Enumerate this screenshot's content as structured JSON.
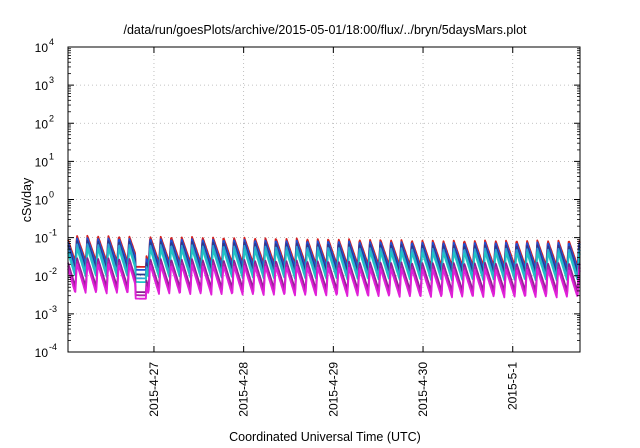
{
  "chart_data": {
    "type": "line",
    "title": "/data/run/goesPlots/archive/2015-05-01/18:00/flux/../bryn/5daysMars.plot",
    "xlabel": "Coordinated Universal Time (UTC)",
    "ylabel": "cSv/day",
    "yscale": "log",
    "ylim": [
      0.0001,
      10000
    ],
    "y_ticks": [
      {
        "value": 0.0001,
        "base": "10",
        "exp": "-4"
      },
      {
        "value": 0.001,
        "base": "10",
        "exp": "-3"
      },
      {
        "value": 0.01,
        "base": "10",
        "exp": "-2"
      },
      {
        "value": 0.1,
        "base": "10",
        "exp": "-1"
      },
      {
        "value": 1,
        "base": "10",
        "exp": "0"
      },
      {
        "value": 10,
        "base": "10",
        "exp": "1"
      },
      {
        "value": 100,
        "base": "10",
        "exp": "2"
      },
      {
        "value": 1000,
        "base": "10",
        "exp": "3"
      },
      {
        "value": 10000,
        "base": "10",
        "exp": "4"
      }
    ],
    "xlim": [
      "2015-04-26 01:00",
      "2015-05-01 18:00"
    ],
    "x_ticks": [
      {
        "value": "2015-04-27 00:00",
        "label": "2015-4-27"
      },
      {
        "value": "2015-04-28 00:00",
        "label": "2015-4-28"
      },
      {
        "value": "2015-04-29 00:00",
        "label": "2015-4-29"
      },
      {
        "value": "2015-04-30 00:00",
        "label": "2015-4-30"
      },
      {
        "value": "2015-05-01 00:00",
        "label": "2015-5-1"
      }
    ],
    "grid": true,
    "legend": "none",
    "pattern": {
      "cycle_hours": 2.8,
      "decay_fraction": 0.85,
      "dropout": [
        "2015-04-26 19:00",
        "2015-04-26 22:00"
      ]
    },
    "series": [
      {
        "color": "#d42020",
        "peak_early": 0.115,
        "trough_early": 0.024,
        "peak_late": 0.085,
        "trough_late": 0.018
      },
      {
        "color": "#1f4fd6",
        "peak_early": 0.1,
        "trough_early": 0.02,
        "peak_late": 0.075,
        "trough_late": 0.015
      },
      {
        "color": "#2a3a8e",
        "peak_early": 0.085,
        "trough_early": 0.015,
        "peak_late": 0.063,
        "trough_late": 0.012
      },
      {
        "color": "#2ea0d6",
        "peak_early": 0.07,
        "trough_early": 0.012,
        "peak_late": 0.052,
        "trough_late": 0.009
      },
      {
        "color": "#20c4c4",
        "peak_early": 0.055,
        "trough_early": 0.0095,
        "peak_late": 0.042,
        "trough_late": 0.0075
      },
      {
        "color": "#8a2090",
        "peak_early": 0.03,
        "trough_early": 0.0052,
        "peak_late": 0.022,
        "trough_late": 0.004
      },
      {
        "color": "#b020a8",
        "peak_early": 0.025,
        "trough_early": 0.0043,
        "peak_late": 0.018,
        "trough_late": 0.0033
      },
      {
        "color": "#e020d8",
        "peak_early": 0.021,
        "trough_early": 0.0035,
        "peak_late": 0.015,
        "trough_late": 0.0027
      }
    ]
  }
}
